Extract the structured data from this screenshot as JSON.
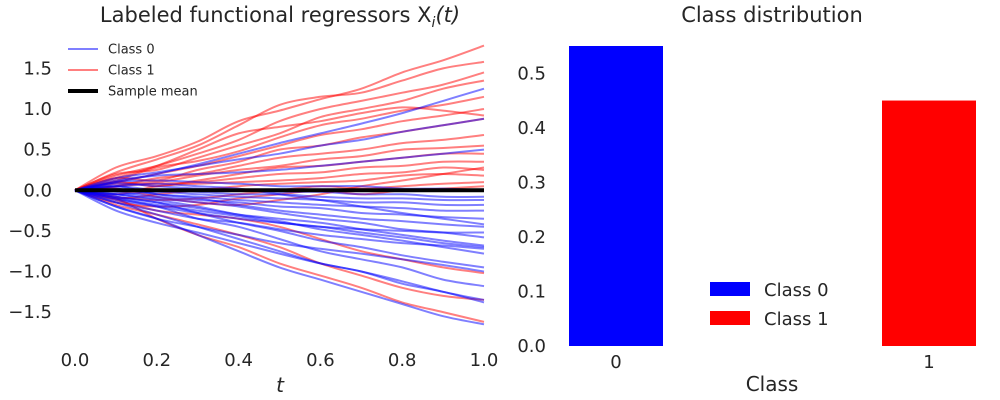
{
  "chart_data": [
    {
      "type": "line",
      "title": "Labeled functional regressors X",
      "title_sub": "i",
      "title_tail": "(t)",
      "xlabel": "t",
      "ylabel": "",
      "xlim": [
        0.0,
        1.0
      ],
      "ylim": [
        -1.88,
        1.8
      ],
      "xticks": [
        "0.0",
        "0.2",
        "0.4",
        "0.6",
        "0.8",
        "1.0"
      ],
      "xtick_values": [
        0.0,
        0.2,
        0.4,
        0.6,
        0.8,
        1.0
      ],
      "yticks": [
        "−1.5",
        "−1.0",
        "−0.5",
        "0.0",
        "0.5",
        "1.0",
        "1.5"
      ],
      "ytick_values": [
        -1.5,
        -1.0,
        -0.5,
        0.0,
        0.5,
        1.0,
        1.5
      ],
      "grid": false,
      "legend_position": "top-left",
      "legend": [
        {
          "label": "Class 0",
          "color": "#0000ff",
          "alpha": 0.5
        },
        {
          "label": "Class 1",
          "color": "#ff0000",
          "alpha": 0.5
        },
        {
          "label": "Sample mean",
          "color": "#000000",
          "alpha": 1.0
        }
      ],
      "x": [
        0.0,
        0.1,
        0.2,
        0.3,
        0.4,
        0.5,
        0.6,
        0.7,
        0.8,
        0.9,
        1.0
      ],
      "series": [
        {
          "class": 1,
          "values": [
            0.0,
            0.28,
            0.42,
            0.6,
            0.85,
            0.98,
            1.12,
            1.25,
            1.45,
            1.6,
            1.78
          ]
        },
        {
          "class": 1,
          "values": [
            0.0,
            0.22,
            0.38,
            0.55,
            0.8,
            1.05,
            1.15,
            1.2,
            1.35,
            1.5,
            1.58
          ]
        },
        {
          "class": 1,
          "values": [
            0.0,
            0.18,
            0.3,
            0.45,
            0.62,
            0.85,
            1.0,
            1.1,
            1.2,
            1.3,
            1.45
          ]
        },
        {
          "class": 1,
          "values": [
            0.0,
            0.2,
            0.25,
            0.4,
            0.55,
            0.7,
            0.9,
            1.0,
            1.1,
            1.25,
            1.35
          ]
        },
        {
          "class": 1,
          "values": [
            0.0,
            0.12,
            0.28,
            0.36,
            0.48,
            0.65,
            0.8,
            0.88,
            0.98,
            1.05,
            1.15
          ]
        },
        {
          "class": 1,
          "values": [
            0.0,
            0.1,
            0.2,
            0.3,
            0.42,
            0.55,
            0.68,
            0.75,
            0.85,
            0.92,
            1.0
          ]
        },
        {
          "class": 1,
          "values": [
            0.0,
            0.15,
            0.12,
            0.25,
            0.35,
            0.5,
            0.55,
            0.65,
            0.72,
            0.8,
            0.88
          ]
        },
        {
          "class": 1,
          "values": [
            0.0,
            0.05,
            0.15,
            0.2,
            0.3,
            0.4,
            0.45,
            0.5,
            0.58,
            0.62,
            0.68
          ]
        },
        {
          "class": 1,
          "values": [
            0.0,
            0.08,
            0.1,
            0.18,
            0.25,
            0.3,
            0.38,
            0.42,
            0.5,
            0.52,
            0.55
          ]
        },
        {
          "class": 1,
          "values": [
            0.0,
            0.1,
            0.05,
            0.12,
            0.2,
            0.28,
            0.3,
            0.35,
            0.4,
            0.45,
            0.45
          ]
        },
        {
          "class": 1,
          "values": [
            0.0,
            0.05,
            0.08,
            0.1,
            0.15,
            0.2,
            0.22,
            0.28,
            0.3,
            0.35,
            0.35
          ]
        },
        {
          "class": 1,
          "values": [
            0.0,
            -0.05,
            0.05,
            0.08,
            0.1,
            0.12,
            0.15,
            0.2,
            0.22,
            0.28,
            0.25
          ]
        },
        {
          "class": 1,
          "values": [
            0.0,
            -0.1,
            -0.05,
            0.0,
            0.05,
            0.08,
            0.1,
            0.12,
            0.18,
            0.2,
            0.18
          ]
        },
        {
          "class": 1,
          "values": [
            0.0,
            -0.08,
            -0.12,
            -0.1,
            -0.05,
            0.0,
            0.05,
            0.02,
            0.05,
            0.08,
            0.1
          ]
        },
        {
          "class": 1,
          "values": [
            0.0,
            -0.15,
            -0.2,
            -0.18,
            -0.1,
            -0.05,
            0.0,
            -0.05,
            0.0,
            0.02,
            0.05
          ]
        },
        {
          "class": 1,
          "values": [
            0.0,
            -0.12,
            -0.25,
            -0.3,
            -0.35,
            -0.45,
            -0.6,
            -0.75,
            -0.85,
            -0.95,
            -1.02
          ]
        },
        {
          "class": 1,
          "values": [
            0.0,
            -0.18,
            -0.3,
            -0.42,
            -0.55,
            -0.7,
            -0.9,
            -1.05,
            -1.2,
            -1.3,
            -1.35
          ]
        },
        {
          "class": 1,
          "values": [
            0.0,
            -0.1,
            -0.35,
            -0.55,
            -0.7,
            -0.9,
            -1.05,
            -1.2,
            -1.38,
            -1.5,
            -1.62
          ]
        },
        {
          "class": 1,
          "values": [
            0.0,
            0.15,
            0.3,
            0.5,
            0.7,
            0.78,
            0.85,
            0.95,
            1.02,
            0.98,
            0.92
          ]
        },
        {
          "class": 1,
          "values": [
            0.0,
            0.02,
            -0.08,
            -0.15,
            -0.18,
            -0.12,
            -0.05,
            0.05,
            0.12,
            0.2,
            0.28
          ]
        },
        {
          "class": 0,
          "values": [
            0.0,
            -0.1,
            -0.2,
            -0.35,
            -0.45,
            -0.6,
            -0.75,
            -0.85,
            -0.95,
            -1.1,
            -1.18
          ]
        },
        {
          "class": 0,
          "values": [
            0.0,
            -0.15,
            -0.3,
            -0.45,
            -0.6,
            -0.75,
            -0.9,
            -1.0,
            -1.15,
            -1.25,
            -1.38
          ]
        },
        {
          "class": 0,
          "values": [
            0.0,
            -0.2,
            -0.35,
            -0.55,
            -0.75,
            -0.95,
            -1.1,
            -1.25,
            -1.4,
            -1.55,
            -1.65
          ]
        },
        {
          "class": 0,
          "values": [
            0.0,
            -0.08,
            -0.15,
            -0.28,
            -0.4,
            -0.5,
            -0.62,
            -0.7,
            -0.8,
            -0.88,
            -0.95
          ]
        },
        {
          "class": 0,
          "values": [
            0.0,
            -0.05,
            -0.12,
            -0.2,
            -0.3,
            -0.38,
            -0.48,
            -0.55,
            -0.62,
            -0.7,
            -0.78
          ]
        },
        {
          "class": 0,
          "values": [
            0.0,
            -0.1,
            -0.18,
            -0.25,
            -0.32,
            -0.4,
            -0.45,
            -0.52,
            -0.58,
            -0.65,
            -0.7
          ]
        },
        {
          "class": 0,
          "values": [
            0.0,
            -0.05,
            -0.1,
            -0.15,
            -0.2,
            -0.28,
            -0.35,
            -0.4,
            -0.48,
            -0.52,
            -0.58
          ]
        },
        {
          "class": 0,
          "values": [
            0.0,
            -0.12,
            -0.2,
            -0.28,
            -0.35,
            -0.4,
            -0.45,
            -0.48,
            -0.5,
            -0.52,
            -0.52
          ]
        },
        {
          "class": 0,
          "values": [
            0.0,
            0.05,
            -0.05,
            -0.1,
            -0.18,
            -0.25,
            -0.3,
            -0.35,
            -0.38,
            -0.42,
            -0.45
          ]
        },
        {
          "class": 0,
          "values": [
            0.0,
            -0.02,
            -0.08,
            -0.12,
            -0.15,
            -0.2,
            -0.22,
            -0.28,
            -0.3,
            -0.33,
            -0.35
          ]
        },
        {
          "class": 0,
          "values": [
            0.0,
            0.02,
            -0.05,
            -0.08,
            -0.12,
            -0.15,
            -0.18,
            -0.2,
            -0.22,
            -0.25,
            -0.25
          ]
        },
        {
          "class": 0,
          "values": [
            0.0,
            -0.05,
            -0.02,
            -0.05,
            -0.08,
            -0.1,
            -0.12,
            -0.15,
            -0.15,
            -0.18,
            -0.18
          ]
        },
        {
          "class": 0,
          "values": [
            0.0,
            0.05,
            0.0,
            -0.02,
            -0.05,
            -0.05,
            -0.08,
            -0.1,
            -0.1,
            -0.12,
            -0.12
          ]
        },
        {
          "class": 0,
          "values": [
            0.0,
            0.08,
            0.05,
            0.02,
            0.0,
            -0.02,
            -0.02,
            -0.05,
            -0.05,
            -0.08,
            -0.08
          ]
        },
        {
          "class": 0,
          "values": [
            0.0,
            0.1,
            0.12,
            0.1,
            0.08,
            0.05,
            0.05,
            0.05,
            0.02,
            0.02,
            0.0
          ]
        },
        {
          "class": 0,
          "values": [
            0.0,
            0.12,
            0.18,
            0.2,
            0.22,
            0.25,
            0.3,
            0.35,
            0.4,
            0.45,
            0.5
          ]
        },
        {
          "class": 0,
          "values": [
            0.0,
            0.15,
            0.22,
            0.3,
            0.38,
            0.45,
            0.55,
            0.62,
            0.72,
            0.8,
            0.88
          ]
        },
        {
          "class": 0,
          "values": [
            0.0,
            0.1,
            0.2,
            0.32,
            0.45,
            0.58,
            0.7,
            0.82,
            0.95,
            1.1,
            1.25
          ]
        },
        {
          "class": 0,
          "values": [
            0.0,
            -0.2,
            -0.35,
            -0.45,
            -0.55,
            -0.65,
            -0.72,
            -0.78,
            -0.85,
            -0.92,
            -1.0
          ]
        },
        {
          "class": 0,
          "values": [
            0.0,
            -0.25,
            -0.4,
            -0.52,
            -0.65,
            -0.78,
            -0.9,
            -1.0,
            -1.12,
            -1.25,
            -1.35
          ]
        },
        {
          "class": 0,
          "values": [
            0.0,
            -0.15,
            -0.25,
            -0.35,
            -0.4,
            -0.48,
            -0.55,
            -0.6,
            -0.65,
            -0.68,
            -0.72
          ]
        },
        {
          "class": 0,
          "values": [
            0.0,
            0.05,
            0.08,
            0.05,
            0.02,
            -0.05,
            -0.12,
            -0.2,
            -0.28,
            -0.35,
            -0.42
          ]
        },
        {
          "class": 0,
          "values": [
            0.0,
            -0.08,
            -0.15,
            -0.22,
            -0.3,
            -0.35,
            -0.4,
            -0.48,
            -0.55,
            -0.62,
            -0.68
          ]
        }
      ],
      "mean": {
        "name": "Sample mean",
        "values": [
          0.0,
          0.0,
          0.0,
          0.0,
          0.0,
          0.0,
          0.0,
          0.0,
          0.0,
          0.0,
          0.0
        ]
      },
      "colors": {
        "class0": "#0000ff",
        "class1": "#ff0000",
        "mean": "#000000"
      }
    },
    {
      "type": "bar",
      "title": "Class distribution",
      "xlabel": "Class",
      "ylabel": "",
      "categories": [
        "0",
        "1"
      ],
      "values": [
        0.55,
        0.45
      ],
      "colors": [
        "#0000ff",
        "#ff0000"
      ],
      "ylim": [
        0.0,
        0.55
      ],
      "yticks": [
        "0.0",
        "0.1",
        "0.2",
        "0.3",
        "0.4",
        "0.5"
      ],
      "ytick_values": [
        0.0,
        0.1,
        0.2,
        0.3,
        0.4,
        0.5
      ],
      "grid": false,
      "legend_position": "lower-center",
      "legend": [
        {
          "label": "Class 0",
          "color": "#0000ff"
        },
        {
          "label": "Class 1",
          "color": "#ff0000"
        }
      ]
    }
  ]
}
